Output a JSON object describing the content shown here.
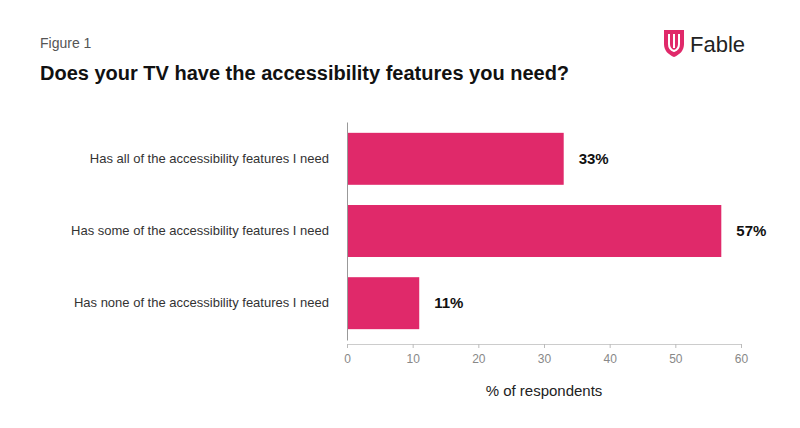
{
  "chart_data": {
    "type": "bar",
    "orientation": "horizontal",
    "title": "Does your TV have the accessibility features you need?",
    "subtitle": "Figure 1",
    "annotations": [
      "Fable"
    ],
    "categories": [
      "Has all of the accessibility features I need",
      "Has some of the accessibility features I need",
      "Has none of the accessibility features I need"
    ],
    "values": [
      33,
      57,
      11
    ],
    "value_labels": [
      "33%",
      "57%",
      "11%"
    ],
    "data_labels": true,
    "color": "#e0296a",
    "xlabel": "% of respondents",
    "xlim": [
      0,
      60
    ],
    "xticks": [
      0,
      10,
      20,
      30,
      40,
      50,
      60
    ],
    "grid": false
  }
}
